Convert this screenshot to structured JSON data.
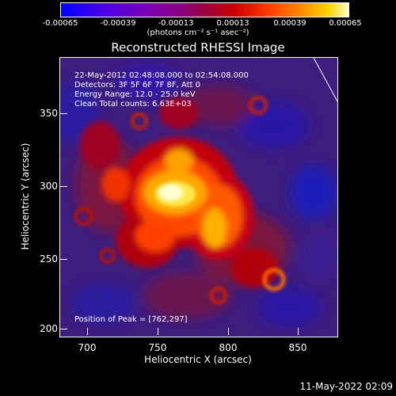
{
  "colorbar": {
    "ticks": [
      "-0.00065",
      "-0.00039",
      "-0.00013",
      "0.00013",
      "0.00039",
      "0.00065"
    ],
    "units": "(photons cm⁻² s⁻¹ asec⁻²)"
  },
  "title": "Reconstructed RHESSI Image",
  "info": {
    "time_range": "22-May-2012 02:48:08.000 to 02:54:08.000",
    "detectors": "Detectors: 3F 5F 6F 7F 8F, Att 0",
    "energy": "Energy Range: 12.0 - 25.0 keV",
    "clean": "Clean     Total counts: 6.63E+03",
    "peak": "Position of Peak = [762,297]"
  },
  "axes": {
    "xlabel": "Heliocentric X (arcsec)",
    "ylabel": "Heliocentric Y (arcsec)",
    "xticks": [
      "700",
      "750",
      "800",
      "850"
    ],
    "yticks": [
      "350",
      "300",
      "250",
      "200"
    ]
  },
  "timestamp": "11-May-2022 02:09"
}
